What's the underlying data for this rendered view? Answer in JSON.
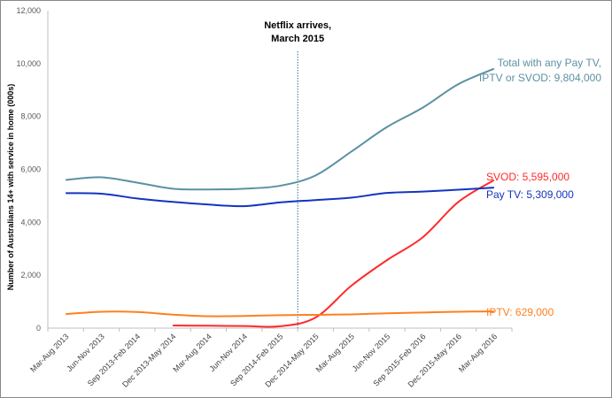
{
  "chart_data": {
    "type": "line",
    "title": "",
    "xlabel": "",
    "ylabel": "Number of Australians 14+ with service in home (000s)",
    "ylim": [
      0,
      12000
    ],
    "yticks": [
      0,
      2000,
      4000,
      6000,
      8000,
      10000,
      12000
    ],
    "ytick_labels": [
      "0",
      "2,000",
      "4,000",
      "6,000",
      "8,000",
      "10,000",
      "12,000"
    ],
    "grid": false,
    "categories": [
      "Mar-Aug 2013",
      "Jun-Nov 2013",
      "Sep 2013-Feb 2014",
      "Dec 2013-May 2014",
      "Mar-Aug 2014",
      "Jun-Nov 2014",
      "Sep 2014-Feb 2015",
      "Dec 2014-May 2015",
      "Mar-Aug 2015",
      "Jun-Nov 2015",
      "Sep 2015-Feb 2016",
      "Dec 2015-May 2016",
      "Mar-Aug 2016"
    ],
    "series": [
      {
        "name": "Total with any Pay TV, IPTV or SVOD",
        "color": "#5b91a3",
        "label_lines": [
          "Total with any Pay TV,",
          "IPTV or SVOD: 9,804,000"
        ],
        "values": [
          5600,
          5700,
          5500,
          5270,
          5240,
          5270,
          5380,
          5770,
          6670,
          7600,
          8330,
          9220,
          9804
        ]
      },
      {
        "name": "SVOD",
        "color": "#ff2a2a",
        "label_lines": [
          "SVOD: 5,595,000"
        ],
        "values": [
          null,
          null,
          null,
          100,
          90,
          80,
          70,
          400,
          1600,
          2570,
          3430,
          4770,
          5595
        ]
      },
      {
        "name": "Pay TV",
        "color": "#1434c0",
        "label_lines": [
          "Pay TV: 5,309,000"
        ],
        "values": [
          5100,
          5080,
          4900,
          4770,
          4670,
          4610,
          4750,
          4840,
          4930,
          5110,
          5160,
          5230,
          5309
        ]
      },
      {
        "name": "IPTV",
        "color": "#ff7f1e",
        "label_lines": [
          "IPTV: 629,000"
        ],
        "values": [
          530,
          620,
          610,
          510,
          450,
          460,
          490,
          500,
          520,
          560,
          590,
          620,
          629
        ]
      }
    ],
    "annotation": {
      "lines": [
        "Netflix arrives,",
        "March 2015"
      ],
      "x_index": 6.5,
      "color": "#2f6f8f"
    }
  }
}
